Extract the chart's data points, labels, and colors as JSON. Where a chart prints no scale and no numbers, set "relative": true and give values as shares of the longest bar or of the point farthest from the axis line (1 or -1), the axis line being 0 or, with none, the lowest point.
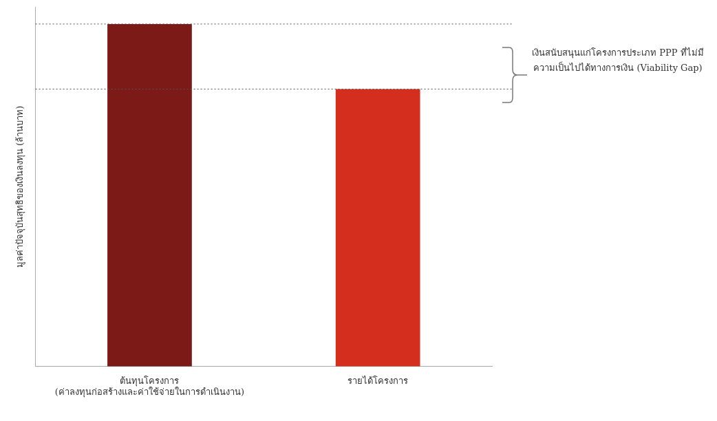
{
  "chart_data": {
    "type": "bar",
    "relative": true,
    "ylabel": "มูลค่าปัจจุบันสุทธิของเงินลงทุน (ล้านบาท)",
    "categories": [
      "ต้นทุนโครงการ\n(ค่าลงทุนก่อสร้างและค่าใช้จ่ายในการดำเนินงาน)",
      "รายได้โครงการ"
    ],
    "values": [
      1,
      0.81
    ],
    "colors": [
      "#7b1a17",
      "#d42e1e"
    ],
    "grid": false,
    "legend": false,
    "ref_lines": [
      {
        "axis": "y",
        "value": 1,
        "color": "#555555",
        "line_style": "dotted"
      },
      {
        "axis": "y",
        "value": 0.81,
        "color": "#555555",
        "line_style": "dotted"
      }
    ],
    "annotations": [
      "เงินสนับสนุนแก่โครงการประเภท PPP ที่ไม่มีความเป็นไปได้ทางการเงิน (Viability Gap)"
    ]
  }
}
